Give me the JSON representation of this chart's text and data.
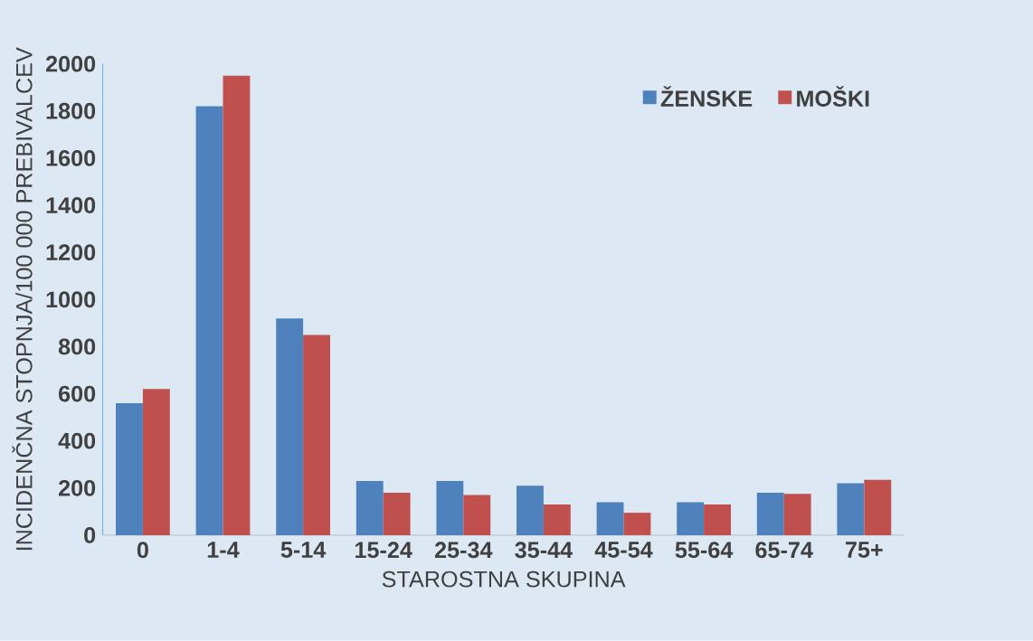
{
  "chart_data": {
    "type": "bar",
    "xlabel": "STAROSTNA SKUPINA",
    "ylabel": "INCIDENČNA STOPNJA/100 000 PREBIVALCEV",
    "categories": [
      "0",
      "1-4",
      "5-14",
      "15-24",
      "25-34",
      "35-44",
      "45-54",
      "55-64",
      "65-74",
      "75+"
    ],
    "series": [
      {
        "name": "ŽENSKE",
        "color": "#4f81bd",
        "values": [
          560,
          1820,
          920,
          230,
          230,
          210,
          140,
          140,
          180,
          220
        ]
      },
      {
        "name": "MOŠKI",
        "color": "#c0504d",
        "values": [
          620,
          1950,
          850,
          180,
          170,
          130,
          95,
          130,
          175,
          235
        ]
      }
    ],
    "ylim": [
      0,
      2000
    ],
    "yticks": [
      0,
      200,
      400,
      600,
      800,
      1000,
      1200,
      1400,
      1600,
      1800,
      2000
    ],
    "grid": false,
    "legend": "top right"
  }
}
